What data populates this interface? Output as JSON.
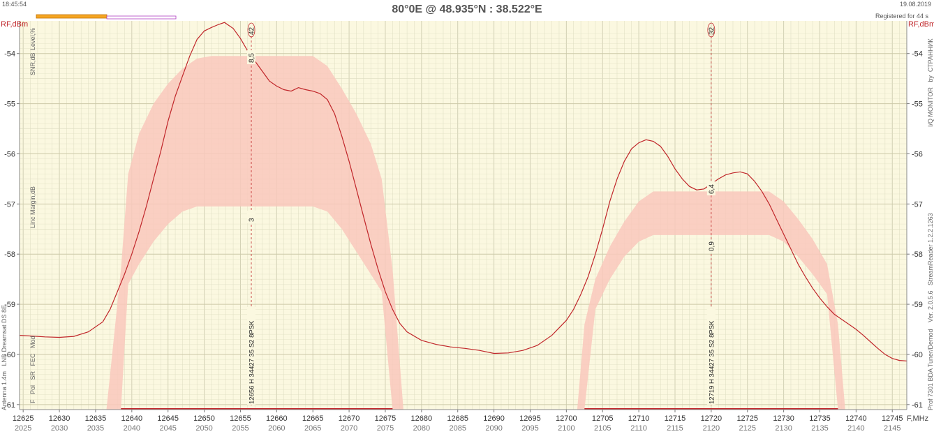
{
  "window": {
    "time": "18:45:54",
    "date": "19.08.2019",
    "title": "80°0E  @  48.935°N : 38.522°E",
    "registered": "Registered for 44 s"
  },
  "side_labels": {
    "left_axis_unit": "RF,dBm",
    "right_axis_unit": "RF,dBm",
    "level": "Level,%",
    "snr": "SNR,dB",
    "linc": "Linc Margin,dB",
    "params": "F   Pol   SR   FEC   Mod",
    "antenna": "Antenna 1.4m   LNB Dreamsat DS 8E",
    "monitor": "I/Q MONITOR   by  СТРАННИК",
    "version": "Ver. 2.0.5.6   StreamReader 1.2.2.1263",
    "device": "Prof 7301 BDA Tuner/Demod",
    "x_unit": "F,MHz"
  },
  "colors": {
    "plot_bg": "#fbf8e0",
    "grid": "#dcdcc0",
    "trace": "#c0262a",
    "band_fill": "#f9c8bc",
    "marker": "#c0262a"
  },
  "chart_data": {
    "type": "line",
    "xlabel": "F,MHz",
    "ylabel": "RF,dBm",
    "xlim": [
      12624.5,
      12747
    ],
    "ylim": [
      -61.1,
      -53.35
    ],
    "y_ticks": [
      -54,
      -55,
      -56,
      -57,
      -58,
      -59,
      -60,
      -61
    ],
    "x_ticks": [
      12625,
      12630,
      12635,
      12640,
      12645,
      12650,
      12655,
      12660,
      12665,
      12670,
      12675,
      12680,
      12685,
      12690,
      12695,
      12700,
      12705,
      12710,
      12715,
      12720,
      12725,
      12730,
      12735,
      12740,
      12745
    ],
    "x_ticks_if": [
      2025,
      2030,
      2035,
      2040,
      2045,
      2050,
      2055,
      2060,
      2065,
      2070,
      2075,
      2080,
      2085,
      2090,
      2095,
      2100,
      2105,
      2110,
      2115,
      2120,
      2125,
      2130,
      2135,
      2140,
      2145
    ],
    "grid": true,
    "series": [
      {
        "x": [
          12624.5,
          12627,
          12628,
          12630,
          12632,
          12634,
          12636,
          12637,
          12638,
          12639,
          12640,
          12641,
          12642,
          12643,
          12644,
          12645,
          12646,
          12647,
          12648,
          12649,
          12650,
          12651,
          12652,
          12652.8,
          12654,
          12655,
          12656,
          12657,
          12658,
          12659,
          12660,
          12661,
          12662,
          12663,
          12664,
          12665,
          12666,
          12667,
          12668,
          12669,
          12670,
          12671,
          12672,
          12673,
          12674,
          12675,
          12676,
          12677,
          12678,
          12680,
          12682,
          12684,
          12686,
          12688,
          12690,
          12692,
          12694,
          12696,
          12698,
          12700,
          12701,
          12702,
          12703,
          12704,
          12705,
          12706,
          12707,
          12708,
          12709,
          12710,
          12711,
          12712,
          12713,
          12714,
          12715,
          12716,
          12717,
          12718,
          12719,
          12720,
          12721,
          12722,
          12723,
          12724,
          12725,
          12726,
          12727,
          12728,
          12729,
          12730,
          12731,
          12732,
          12733,
          12734,
          12735,
          12736,
          12737,
          12738,
          12739,
          12740,
          12741,
          12742,
          12743,
          12744,
          12745,
          12746,
          12747
        ],
        "y": [
          -59.62,
          -59.64,
          -59.65,
          -59.66,
          -59.64,
          -59.55,
          -59.35,
          -59.1,
          -58.75,
          -58.4,
          -58.0,
          -57.55,
          -57.05,
          -56.5,
          -55.95,
          -55.35,
          -54.85,
          -54.45,
          -54.05,
          -53.72,
          -53.55,
          -53.48,
          -53.42,
          -53.38,
          -53.5,
          -53.7,
          -53.95,
          -54.15,
          -54.35,
          -54.55,
          -54.65,
          -54.72,
          -54.75,
          -54.68,
          -54.72,
          -54.75,
          -54.8,
          -54.92,
          -55.2,
          -55.65,
          -56.15,
          -56.7,
          -57.25,
          -57.8,
          -58.3,
          -58.75,
          -59.1,
          -59.38,
          -59.55,
          -59.72,
          -59.8,
          -59.85,
          -59.88,
          -59.92,
          -59.98,
          -59.97,
          -59.92,
          -59.82,
          -59.62,
          -59.32,
          -59.1,
          -58.8,
          -58.45,
          -58.0,
          -57.5,
          -56.95,
          -56.5,
          -56.15,
          -55.9,
          -55.78,
          -55.72,
          -55.75,
          -55.85,
          -56.05,
          -56.3,
          -56.5,
          -56.65,
          -56.72,
          -56.7,
          -56.6,
          -56.5,
          -56.42,
          -56.38,
          -56.36,
          -56.4,
          -56.55,
          -56.75,
          -57.0,
          -57.3,
          -57.6,
          -57.9,
          -58.2,
          -58.45,
          -58.68,
          -58.88,
          -59.05,
          -59.2,
          -59.3,
          -59.4,
          -59.5,
          -59.62,
          -59.75,
          -59.88,
          -60.0,
          -60.08,
          -60.12,
          -60.13
        ]
      }
    ],
    "carriers": [
      {
        "center": 12656.5,
        "freq_label": "12656 H 34427 35 S2  8PSK",
        "level": "42",
        "snr": "8,5",
        "linc": "3",
        "band_x": [
          12636.5,
          12638.5,
          12639.5,
          12641,
          12643,
          12645,
          12647,
          12649,
          12651,
          12665,
          12667,
          12669,
          12671,
          12673,
          12674.5,
          12676,
          12677.5
        ],
        "band_top": [
          -61.1,
          -58.3,
          -56.4,
          -55.6,
          -55.0,
          -54.6,
          -54.3,
          -54.1,
          -54.05,
          -54.05,
          -54.25,
          -54.7,
          -55.2,
          -55.8,
          -56.5,
          -58.3,
          -61.1
        ],
        "band_bot": [
          -61.1,
          -61.1,
          -58.6,
          -58.2,
          -57.75,
          -57.4,
          -57.15,
          -57.05,
          -57.05,
          -57.05,
          -57.15,
          -57.5,
          -57.95,
          -58.4,
          -58.75,
          -61.1,
          -61.1
        ]
      },
      {
        "center": 12720,
        "freq_label": "12719 H 34427 35 S2  8PSK",
        "level": "32",
        "snr": "6,4",
        "linc": "0,9",
        "band_x": [
          12701.5,
          12702.5,
          12704,
          12706,
          12708,
          12710,
          12712,
          12728,
          12730,
          12732,
          12734,
          12736,
          12737.5,
          12738.5
        ],
        "band_top": [
          -61.1,
          -59.4,
          -58.5,
          -57.85,
          -57.35,
          -56.95,
          -56.75,
          -56.75,
          -56.95,
          -57.3,
          -57.7,
          -58.2,
          -59.4,
          -61.1
        ],
        "band_bot": [
          -61.1,
          -61.1,
          -59.1,
          -58.5,
          -58.05,
          -57.75,
          -57.62,
          -57.62,
          -57.75,
          -58.05,
          -58.4,
          -58.8,
          -61.1,
          -61.1
        ]
      }
    ],
    "annotations": [
      {
        "carrier": 0,
        "text": "42"
      },
      {
        "carrier": 1,
        "text": "32"
      }
    ]
  }
}
